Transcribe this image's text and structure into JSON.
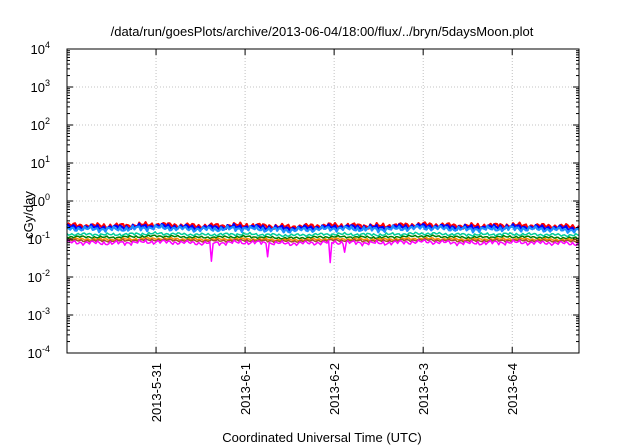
{
  "chart_data": {
    "type": "line",
    "title": "/data/run/goesPlots/archive/2013-06-04/18:00/flux/../bryn/5daysMoon.plot",
    "xlabel": "Coordinated Universal Time (UTC)",
    "ylabel": "cGy/day",
    "yscale": "log",
    "ylim": [
      0.0001,
      10000
    ],
    "xlim": [
      "2013-05-30 00:00",
      "2013-06-04 18:00"
    ],
    "grid": true,
    "y_ticks": [
      {
        "value": 0.0001,
        "base": "10",
        "exp": "-4"
      },
      {
        "value": 0.001,
        "base": "10",
        "exp": "-3"
      },
      {
        "value": 0.01,
        "base": "10",
        "exp": "-2"
      },
      {
        "value": 0.1,
        "base": "10",
        "exp": "-1"
      },
      {
        "value": 1,
        "base": "10",
        "exp": "0"
      },
      {
        "value": 10,
        "base": "10",
        "exp": "1"
      },
      {
        "value": 100,
        "base": "10",
        "exp": "2"
      },
      {
        "value": 1000,
        "base": "10",
        "exp": "3"
      },
      {
        "value": 10000,
        "base": "10",
        "exp": "4"
      }
    ],
    "x_ticks": [
      {
        "value": "2013-05-31 00:00",
        "label": "2013-5-31"
      },
      {
        "value": "2013-06-01 00:00",
        "label": "2013-6-1"
      },
      {
        "value": "2013-06-02 00:00",
        "label": "2013-6-2"
      },
      {
        "value": "2013-06-03 00:00",
        "label": "2013-6-3"
      },
      {
        "value": "2013-06-04 00:00",
        "label": "2013-6-4"
      }
    ],
    "x": [
      "2013-05-30 00:00",
      "2013-05-30 12:00",
      "2013-05-31 00:00",
      "2013-05-31 12:00",
      "2013-06-01 00:00",
      "2013-06-01 12:00",
      "2013-06-02 00:00",
      "2013-06-02 12:00",
      "2013-06-03 00:00",
      "2013-06-03 12:00",
      "2013-06-04 00:00",
      "2013-06-04 18:00"
    ],
    "series": [
      {
        "color": "#ff0000",
        "values": [
          0.23,
          0.22,
          0.24,
          0.22,
          0.23,
          0.21,
          0.23,
          0.22,
          0.24,
          0.22,
          0.23,
          0.21
        ]
      },
      {
        "color": "#0000ff",
        "values": [
          0.21,
          0.2,
          0.22,
          0.2,
          0.21,
          0.19,
          0.21,
          0.2,
          0.22,
          0.2,
          0.21,
          0.19
        ]
      },
      {
        "color": "#1e90ff",
        "values": [
          0.19,
          0.18,
          0.2,
          0.18,
          0.19,
          0.17,
          0.19,
          0.18,
          0.2,
          0.18,
          0.19,
          0.17
        ]
      },
      {
        "color": "#00cc99",
        "values": [
          0.135,
          0.13,
          0.14,
          0.13,
          0.135,
          0.125,
          0.135,
          0.13,
          0.14,
          0.13,
          0.135,
          0.125
        ]
      },
      {
        "color": "#008000",
        "values": [
          0.115,
          0.11,
          0.12,
          0.11,
          0.115,
          0.105,
          0.115,
          0.11,
          0.12,
          0.11,
          0.115,
          0.105
        ]
      },
      {
        "color": "#ff8c00",
        "values": [
          0.1,
          0.097,
          0.103,
          0.097,
          0.1,
          0.094,
          0.1,
          0.097,
          0.103,
          0.097,
          0.1,
          0.094
        ]
      },
      {
        "color": "#a0522d",
        "values": [
          0.092,
          0.089,
          0.095,
          0.089,
          0.092,
          0.087,
          0.092,
          0.089,
          0.095,
          0.089,
          0.092,
          0.087
        ]
      },
      {
        "color": "#ff00ff",
        "values": [
          0.082,
          0.078,
          0.085,
          0.078,
          0.082,
          0.076,
          0.082,
          0.078,
          0.085,
          0.078,
          0.082,
          0.076
        ]
      }
    ],
    "dips": [
      {
        "x": "2013-05-31 15:00",
        "value": 0.026
      },
      {
        "x": "2013-06-01 06:00",
        "value": 0.034
      },
      {
        "x": "2013-06-01 23:00",
        "value": 0.024
      },
      {
        "x": "2013-06-02 03:00",
        "value": 0.045
      }
    ]
  }
}
